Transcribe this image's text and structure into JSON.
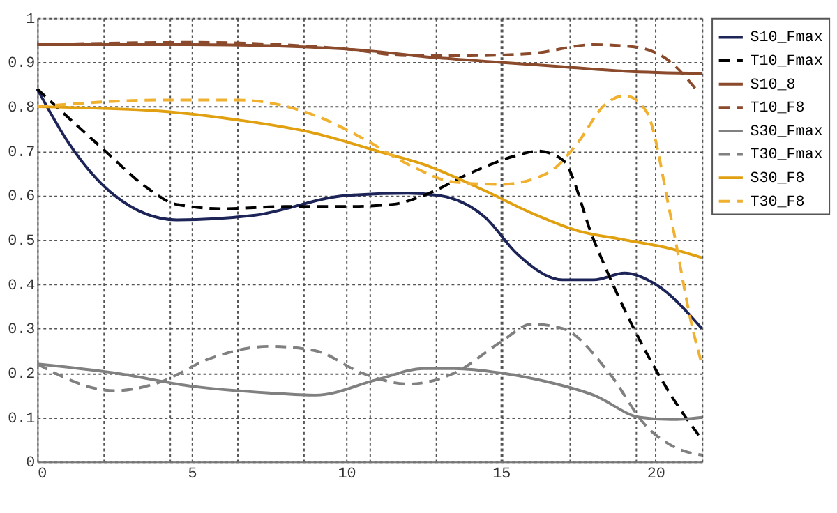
{
  "chart_data": {
    "type": "line",
    "legend": "top right",
    "grid": true,
    "marker": "none",
    "xlim": [
      0,
      21.5
    ],
    "ylim": [
      0,
      1
    ],
    "xticks": [
      0,
      {
        "value": 2.15,
        "label": null
      },
      {
        "value": 4.3,
        "label": null
      },
      5,
      {
        "value": 6.45,
        "label": null
      },
      {
        "value": 8.6,
        "label": null
      },
      10,
      {
        "value": 10.75,
        "label": null
      },
      {
        "value": 12.9,
        "label": null
      },
      15,
      {
        "value": 15.05,
        "label": null
      },
      {
        "value": 17.2,
        "label": null
      },
      {
        "value": 19.35,
        "label": null
      },
      20,
      {
        "value": 21.5,
        "label": null
      }
    ],
    "yticks": [
      0,
      0.1,
      0.2,
      0.3,
      0.4,
      0.5,
      0.6,
      0.7,
      0.8,
      0.9,
      1
    ],
    "series": [
      {
        "name": "S10_Fmax",
        "color": "#1c2458",
        "line_style": "solid",
        "x": [
          0,
          1,
          2.5,
          4.5,
          7,
          10,
          12,
          13,
          14.5,
          15.5,
          17,
          18,
          19,
          20,
          21.5
        ],
        "values": [
          0.84,
          0.72,
          0.6,
          0.545,
          0.555,
          0.6,
          0.605,
          0.6,
          0.55,
          0.47,
          0.41,
          0.41,
          0.425,
          0.4,
          0.3
        ]
      },
      {
        "name": "T10_Fmax",
        "color": "#000000",
        "line_style": "dashed",
        "x": [
          0,
          2.2,
          3.5,
          4.5,
          6,
          8,
          10,
          11.5,
          12.5,
          14,
          15.5,
          16.2,
          17,
          18,
          19.3,
          20.5,
          21.5
        ],
        "values": [
          0.84,
          0.7,
          0.62,
          0.58,
          0.57,
          0.575,
          0.575,
          0.58,
          0.6,
          0.65,
          0.69,
          0.7,
          0.68,
          0.5,
          0.3,
          0.15,
          0.05
        ]
      },
      {
        "name": "S10_8",
        "color": "#8b4a2b",
        "line_style": "solid",
        "x": [
          0,
          5,
          10,
          13,
          15,
          17,
          19,
          21.5
        ],
        "values": [
          0.94,
          0.94,
          0.93,
          0.91,
          0.9,
          0.89,
          0.88,
          0.875
        ]
      },
      {
        "name": "T10_F8",
        "color": "#8b4a2b",
        "line_style": "dashed",
        "x": [
          0,
          5,
          10,
          12,
          14,
          16,
          18,
          19.3,
          20.5,
          21.3
        ],
        "values": [
          0.94,
          0.945,
          0.93,
          0.915,
          0.915,
          0.92,
          0.94,
          0.935,
          0.9,
          0.84
        ]
      },
      {
        "name": "S30_Fmax",
        "color": "#808080",
        "line_style": "solid",
        "x": [
          0,
          2.5,
          5,
          7.5,
          9,
          11,
          12.5,
          13.5,
          15,
          16.5,
          18,
          19.5,
          20.5,
          21.5
        ],
        "values": [
          0.22,
          0.2,
          0.17,
          0.155,
          0.15,
          0.185,
          0.21,
          0.21,
          0.2,
          0.18,
          0.15,
          0.1,
          0.095,
          0.1
        ]
      },
      {
        "name": "T30_Fmax",
        "color": "#808080",
        "line_style": "dashed",
        "x": [
          0,
          2.5,
          4,
          5.5,
          7.5,
          9,
          10.5,
          12,
          13.5,
          15,
          16,
          17,
          18.5,
          19.7,
          20.7,
          21.5
        ],
        "values": [
          0.22,
          0.16,
          0.18,
          0.23,
          0.26,
          0.25,
          0.2,
          0.175,
          0.2,
          0.27,
          0.31,
          0.3,
          0.2,
          0.08,
          0.03,
          0.015
        ]
      },
      {
        "name": "S30_F8",
        "color": "#e0a010",
        "line_style": "solid",
        "x": [
          0,
          4,
          6.5,
          9,
          11,
          12.5,
          14.5,
          16,
          17.5,
          19,
          20.5,
          21.5
        ],
        "values": [
          0.8,
          0.79,
          0.77,
          0.74,
          0.7,
          0.67,
          0.61,
          0.56,
          0.52,
          0.5,
          0.48,
          0.46
        ]
      },
      {
        "name": "T30_F8",
        "color": "#f0b030",
        "line_style": "dashed",
        "x": [
          0,
          4,
          6.5,
          9,
          10.5,
          12,
          13.5,
          15,
          16.5,
          17.5,
          18.3,
          19,
          19.7,
          20.5,
          21.2,
          21.5
        ],
        "values": [
          0.8,
          0.815,
          0.815,
          0.78,
          0.73,
          0.67,
          0.63,
          0.625,
          0.65,
          0.72,
          0.8,
          0.825,
          0.79,
          0.55,
          0.3,
          0.22
        ]
      }
    ]
  }
}
